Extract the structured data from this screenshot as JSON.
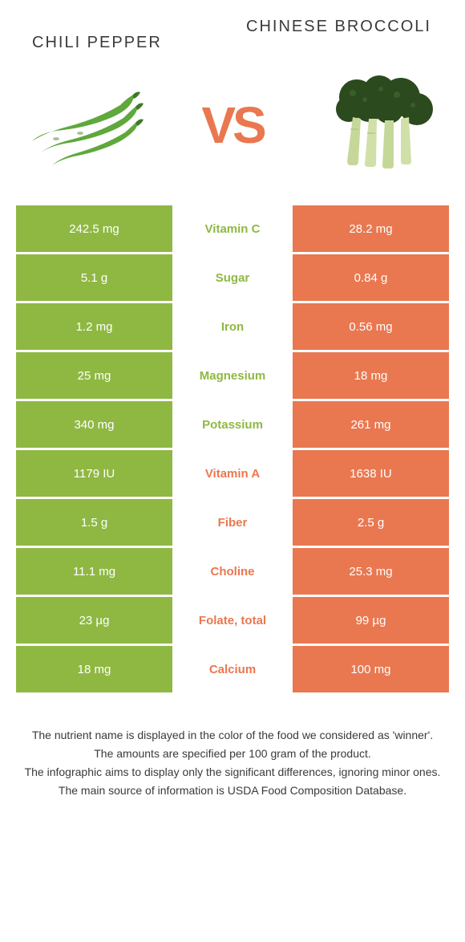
{
  "colors": {
    "left": "#8fb843",
    "right": "#e97850",
    "leftText": "#8fb843",
    "rightText": "#e97850",
    "footer": "#3a3a3a",
    "title": "#3a3a3a"
  },
  "titles": {
    "left": "Chili pepper",
    "right": "Chinese broccoli"
  },
  "vs": "VS",
  "rows": [
    {
      "left": "242.5 mg",
      "label": "Vitamin C",
      "right": "28.2 mg",
      "winner": "left"
    },
    {
      "left": "5.1 g",
      "label": "Sugar",
      "right": "0.84 g",
      "winner": "left"
    },
    {
      "left": "1.2 mg",
      "label": "Iron",
      "right": "0.56 mg",
      "winner": "left"
    },
    {
      "left": "25 mg",
      "label": "Magnesium",
      "right": "18 mg",
      "winner": "left"
    },
    {
      "left": "340 mg",
      "label": "Potassium",
      "right": "261 mg",
      "winner": "left"
    },
    {
      "left": "1179 IU",
      "label": "Vitamin A",
      "right": "1638 IU",
      "winner": "right"
    },
    {
      "left": "1.5 g",
      "label": "Fiber",
      "right": "2.5 g",
      "winner": "right"
    },
    {
      "left": "11.1 mg",
      "label": "Choline",
      "right": "25.3 mg",
      "winner": "right"
    },
    {
      "left": "23 µg",
      "label": "Folate, total",
      "right": "99 µg",
      "winner": "right"
    },
    {
      "left": "18 mg",
      "label": "Calcium",
      "right": "100 mg",
      "winner": "right"
    }
  ],
  "footer": {
    "l1": "The nutrient name is displayed in the color of the food we considered as 'winner'.",
    "l2": "The amounts are specified per 100 gram of the product.",
    "l3": "The infographic aims to display only the significant differences, ignoring minor ones.",
    "l4": "The main source of information is USDA Food Composition Database."
  }
}
